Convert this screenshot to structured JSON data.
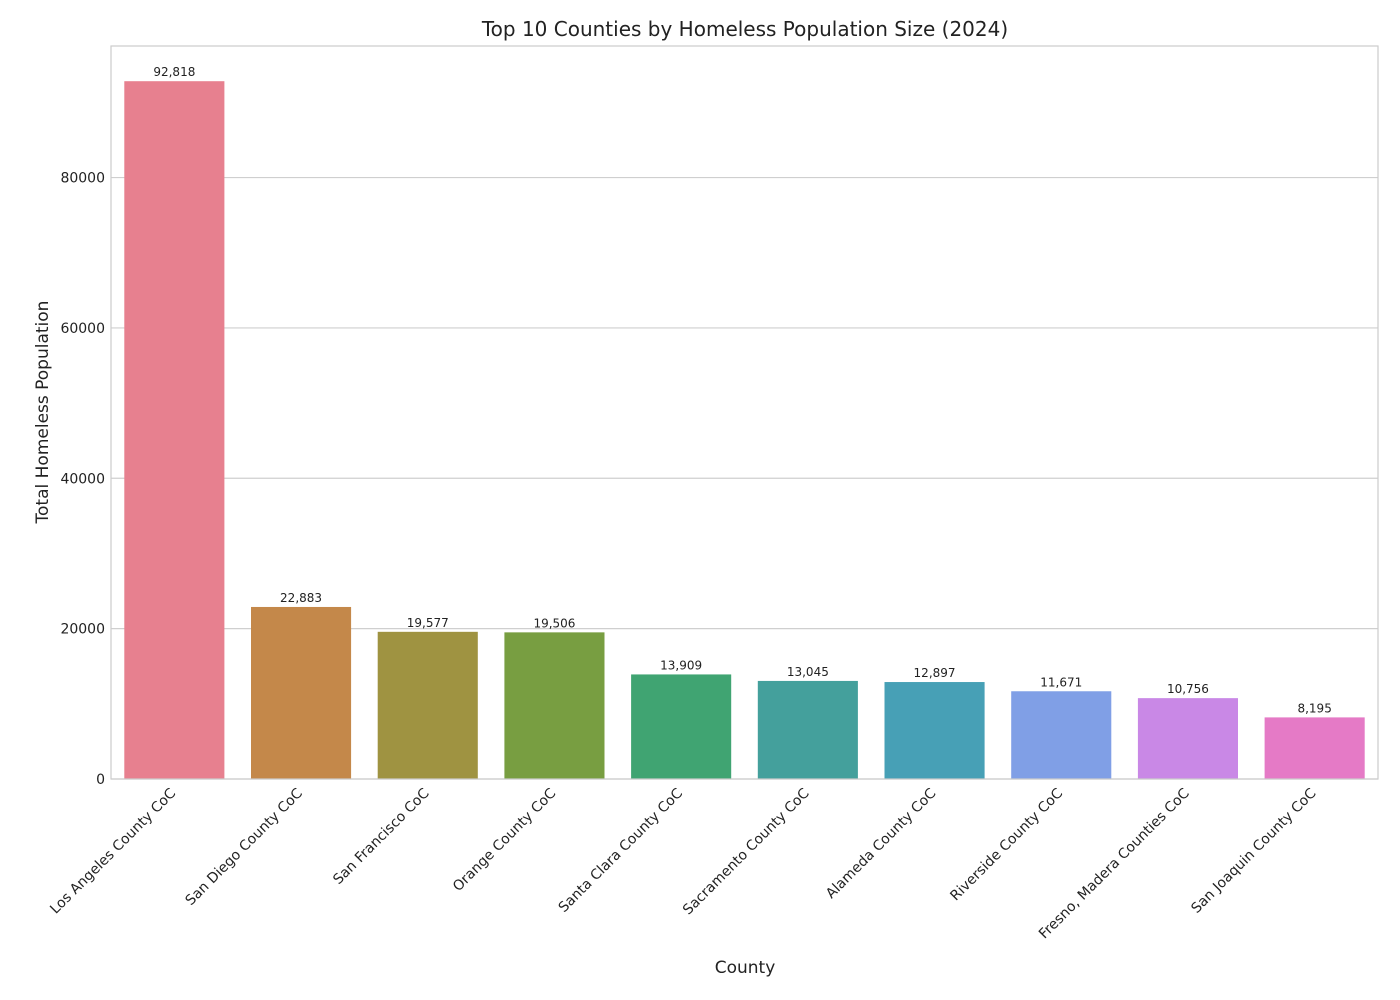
{
  "chart_data": {
    "type": "bar",
    "title": "Top 10 Counties by Homeless Population Size (2024)",
    "xlabel": "County",
    "ylabel": "Total Homeless Population",
    "categories": [
      "Los Angeles County CoC",
      "San Diego County CoC",
      "San Francisco CoC",
      "Orange County CoC",
      "Santa Clara County CoC",
      "Sacramento County CoC",
      "Alameda County CoC",
      "Riverside County CoC",
      "Fresno, Madera Counties CoC",
      "San Joaquin County CoC"
    ],
    "values": [
      92818,
      22883,
      19577,
      19506,
      13909,
      13045,
      12897,
      11671,
      10756,
      8195
    ],
    "value_labels": [
      "92,818",
      "22,883",
      "19,577",
      "19,506",
      "13,909",
      "13,045",
      "12,897",
      "11,671",
      "10,756",
      "8,195"
    ],
    "colors": [
      "#e7808f",
      "#c4884a",
      "#9f9341",
      "#789e41",
      "#40a472",
      "#44a09c",
      "#47a0b6",
      "#809fe6",
      "#c988e6",
      "#e57ac6"
    ],
    "ylim": [
      0,
      97500
    ],
    "yticks": [
      0,
      20000,
      40000,
      60000,
      80000
    ],
    "ytick_labels": [
      "0",
      "20000",
      "40000",
      "60000",
      "80000"
    ],
    "grid": "horizontal",
    "legend": "none"
  }
}
